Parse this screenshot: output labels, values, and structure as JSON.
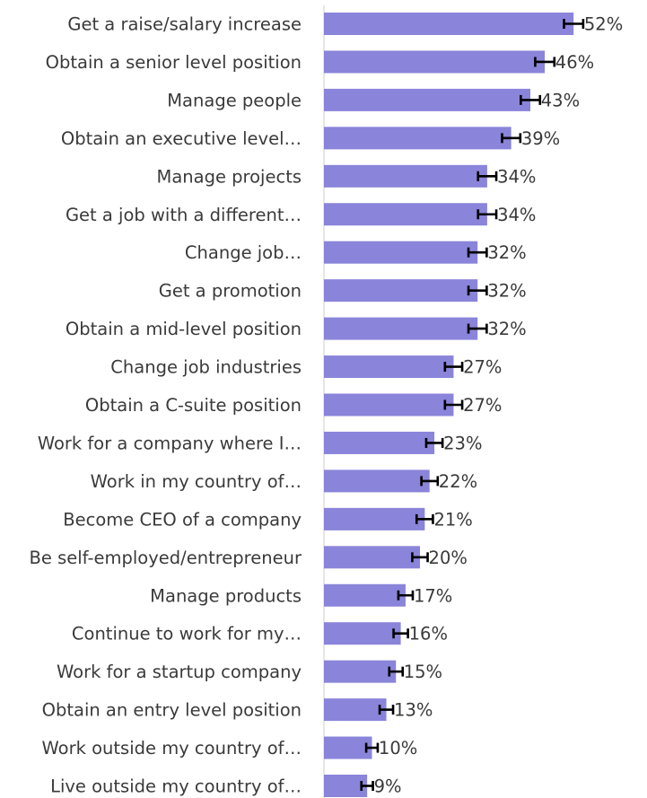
{
  "chart_data": {
    "type": "bar",
    "orientation": "horizontal",
    "title": "",
    "xlabel": "",
    "ylabel": "",
    "xlim": [
      0,
      60
    ],
    "grid": false,
    "bar_color": "#8a84da",
    "error_bar_color": "#000000",
    "categories": [
      "Get a raise/salary increase",
      "Obtain a senior level position",
      "Manage people",
      "Obtain an executive level…",
      "Manage projects",
      "Get a job with a different…",
      "Change job…",
      "Get a promotion",
      "Obtain a mid-level position",
      "Change job industries",
      "Obtain a C-suite position",
      "Work for a company where I…",
      "Work in my country of…",
      "Become CEO of a company",
      "Be self-employed/entrepreneur",
      "Manage products",
      "Continue to work for my…",
      "Work for a startup company",
      "Obtain an entry level position",
      "Work outside my country of…",
      "Live outside my country of…"
    ],
    "values": [
      52,
      46,
      43,
      39,
      34,
      34,
      32,
      32,
      32,
      27,
      27,
      23,
      22,
      21,
      20,
      17,
      16,
      15,
      13,
      10,
      9
    ],
    "value_labels": [
      "52%",
      "46%",
      "43%",
      "39%",
      "34%",
      "34%",
      "32%",
      "32%",
      "32%",
      "27%",
      "27%",
      "23%",
      "22%",
      "21%",
      "20%",
      "17%",
      "16%",
      "15%",
      "13%",
      "10%",
      "9%"
    ],
    "error_margin": [
      2.0,
      2.0,
      2.0,
      1.9,
      1.9,
      1.9,
      1.9,
      1.9,
      1.9,
      1.8,
      1.8,
      1.7,
      1.7,
      1.7,
      1.6,
      1.5,
      1.5,
      1.4,
      1.4,
      1.2,
      1.2
    ]
  }
}
